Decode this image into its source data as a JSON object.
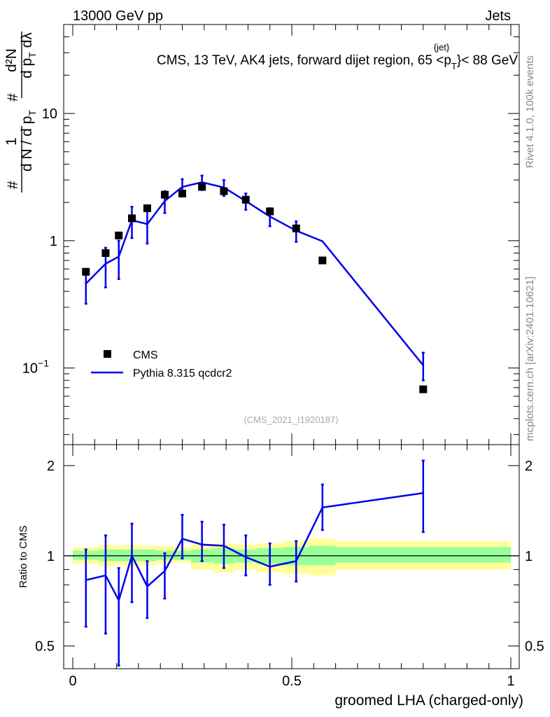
{
  "header": {
    "left": "13000 GeV pp",
    "right": "Jets",
    "title_main": "CMS, 13 TeV, AK4 jets, forward dijet region, 65 <p",
    "title_sup": "{jet}",
    "title_sub": "T",
    "title_tail": "}< 88 GeV"
  },
  "side_labels": {
    "rivet": "Rivet 4.1.0,  100k events",
    "mcplots": "mcplots.cern.ch [arXiv:2401.10621]"
  },
  "colors": {
    "mc_line": "#0000ee",
    "band_yellow": "#ffff99",
    "band_green": "#99ff99"
  },
  "chart_data": [
    {
      "type": "scatter",
      "panel": "main",
      "yscale": "log",
      "xlim": [
        0,
        1
      ],
      "ylim": [
        0.025,
        50
      ],
      "ylabel_parts": {
        "hash": "#",
        "one": "1",
        "denominator": "d N / d p",
        "den_sub": "T",
        "numerator_top": "d²N",
        "numerator_bottom": "d p",
        "num_sub": "T",
        "num_tail": " dλ"
      },
      "yticks": [
        {
          "value": 10,
          "label": "10"
        },
        {
          "value": 1,
          "label": "1"
        },
        {
          "value": 0.1,
          "label": "10",
          "sup": "−1"
        }
      ],
      "watermark": "(CMS_2021_I1920187)",
      "legend": [
        {
          "name": "CMS",
          "kind": "marker"
        },
        {
          "name": "Pythia 8.315 qcdcr2",
          "kind": "line"
        }
      ],
      "series": [
        {
          "name": "CMS",
          "x": [
            0.03,
            0.075,
            0.105,
            0.135,
            0.17,
            0.21,
            0.25,
            0.295,
            0.345,
            0.395,
            0.45,
            0.51,
            0.57,
            0.8
          ],
          "y": [
            0.57,
            0.8,
            1.1,
            1.5,
            1.8,
            2.3,
            2.35,
            2.65,
            2.45,
            2.1,
            1.7,
            1.25,
            0.7,
            0.068
          ]
        },
        {
          "name": "Pythia 8.315 qcdcr2",
          "x": [
            0.03,
            0.075,
            0.105,
            0.135,
            0.17,
            0.21,
            0.25,
            0.295,
            0.345,
            0.395,
            0.45,
            0.51,
            0.57,
            0.8
          ],
          "y": [
            0.46,
            0.66,
            0.75,
            1.45,
            1.35,
            2.05,
            2.65,
            2.88,
            2.62,
            2.05,
            1.55,
            1.2,
            0.99,
            0.105
          ],
          "yerr_low": [
            0.32,
            0.43,
            0.5,
            1.05,
            0.95,
            1.65,
            2.25,
            2.5,
            2.25,
            1.75,
            1.3,
            0.98,
            0.0,
            0.08
          ],
          "yerr_high": [
            0.6,
            0.88,
            1.0,
            1.85,
            1.75,
            2.45,
            3.05,
            3.25,
            3.0,
            2.35,
            1.8,
            1.42,
            0.0,
            0.132
          ]
        }
      ]
    },
    {
      "type": "line",
      "panel": "ratio",
      "yscale": "log",
      "xlim": [
        0,
        1
      ],
      "ylim": [
        0.42,
        2.35
      ],
      "ylabel": "Ratio to CMS",
      "xlabel": "groomed LHA (charged-only)",
      "xticks": [
        {
          "value": 0,
          "label": "0"
        },
        {
          "value": 0.5,
          "label": "0.5"
        },
        {
          "value": 1,
          "label": "1"
        }
      ],
      "yticks": [
        {
          "value": 2,
          "label": "2"
        },
        {
          "value": 1,
          "label": "1"
        },
        {
          "value": 0.5,
          "label": "0.5"
        }
      ],
      "bands": {
        "bin_edges": [
          0,
          0.06,
          0.09,
          0.12,
          0.15,
          0.19,
          0.23,
          0.27,
          0.32,
          0.37,
          0.42,
          0.48,
          0.54,
          0.6,
          1
        ],
        "yellow_low": [
          0.94,
          0.92,
          0.93,
          0.92,
          0.93,
          0.94,
          0.95,
          0.9,
          0.88,
          0.9,
          0.88,
          0.87,
          0.86,
          0.9
        ],
        "yellow_high": [
          1.07,
          1.09,
          1.08,
          1.09,
          1.08,
          1.08,
          1.07,
          1.09,
          1.1,
          1.09,
          1.1,
          1.12,
          1.14,
          1.12
        ],
        "green_low": [
          0.97,
          0.96,
          0.96,
          0.96,
          0.96,
          0.97,
          0.97,
          0.95,
          0.94,
          0.95,
          0.94,
          0.93,
          0.93,
          0.95
        ],
        "green_high": [
          1.04,
          1.05,
          1.05,
          1.05,
          1.05,
          1.04,
          1.04,
          1.05,
          1.06,
          1.05,
          1.06,
          1.07,
          1.08,
          1.07
        ]
      },
      "series": [
        {
          "name": "Pythia 8.315 qcdcr2 / CMS",
          "x": [
            0.03,
            0.075,
            0.105,
            0.135,
            0.17,
            0.21,
            0.25,
            0.295,
            0.345,
            0.395,
            0.45,
            0.51,
            0.57,
            0.8
          ],
          "y": [
            0.83,
            0.86,
            0.71,
            1.0,
            0.79,
            0.89,
            1.14,
            1.09,
            1.08,
            0.99,
            0.92,
            0.96,
            1.45,
            1.62
          ],
          "yerr_low": [
            0.58,
            0.55,
            0.43,
            0.7,
            0.62,
            0.72,
            0.98,
            0.96,
            0.91,
            0.86,
            0.8,
            0.82,
            1.22,
            1.2
          ],
          "yerr_high": [
            1.05,
            1.17,
            0.91,
            1.28,
            0.96,
            1.02,
            1.37,
            1.3,
            1.27,
            1.17,
            1.1,
            1.12,
            1.73,
            2.08
          ]
        }
      ]
    }
  ]
}
